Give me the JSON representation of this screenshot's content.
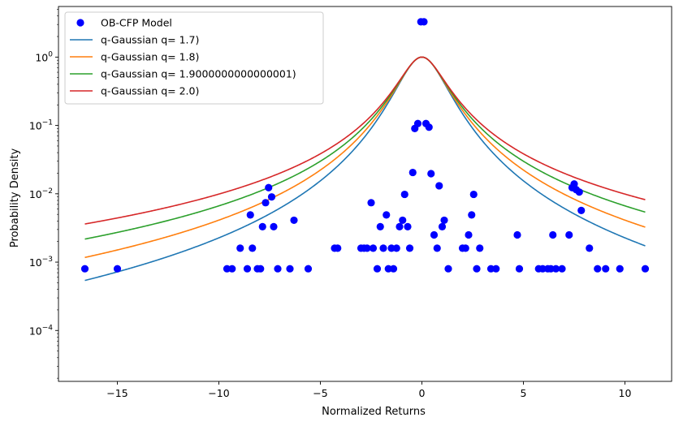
{
  "chart_data": {
    "type": "scatter",
    "title": "",
    "xlabel": "Normalized Returns",
    "ylabel": "Probability Density",
    "xlim": [
      -17.9,
      12.3
    ],
    "ylim": [
      1.8e-05,
      5.5
    ],
    "yscale": "log",
    "grid": false,
    "legend": "top-left",
    "x_ticks": [
      -15,
      -10,
      -5,
      0,
      5,
      10
    ],
    "x_tick_labels": [
      "−15",
      "−10",
      "−5",
      "0",
      "5",
      "10"
    ],
    "y_ticks": [
      0.0001,
      0.001,
      0.01,
      0.1,
      1
    ],
    "y_tick_exponents": [
      "−4",
      "−3",
      "−2",
      "−1",
      "0"
    ],
    "y_tick_base": "10",
    "scatter": {
      "name": "OB-CFP Model",
      "color": "#0000ff",
      "points": [
        [
          -16.6,
          0.0008
        ],
        [
          -15.0,
          0.0008
        ],
        [
          -9.6,
          0.0008
        ],
        [
          -9.35,
          0.0008
        ],
        [
          -8.95,
          0.0016
        ],
        [
          -8.6,
          0.0008
        ],
        [
          -8.45,
          0.0049
        ],
        [
          -8.35,
          0.0016
        ],
        [
          -8.1,
          0.0008
        ],
        [
          -7.95,
          0.0008
        ],
        [
          -7.85,
          0.0033
        ],
        [
          -7.7,
          0.0074
        ],
        [
          -7.55,
          0.0123
        ],
        [
          -7.4,
          0.009
        ],
        [
          -7.3,
          0.0033
        ],
        [
          -7.1,
          0.0008
        ],
        [
          -6.5,
          0.0008
        ],
        [
          -6.3,
          0.0041
        ],
        [
          -5.6,
          0.0008
        ],
        [
          -4.3,
          0.0016
        ],
        [
          -4.15,
          0.0016
        ],
        [
          -3.0,
          0.0016
        ],
        [
          -2.85,
          0.0016
        ],
        [
          -2.7,
          0.0016
        ],
        [
          -2.5,
          0.0074
        ],
        [
          -2.4,
          0.0016
        ],
        [
          -2.2,
          0.0008
        ],
        [
          -2.05,
          0.0033
        ],
        [
          -1.9,
          0.0016
        ],
        [
          -1.75,
          0.0049
        ],
        [
          -1.65,
          0.0008
        ],
        [
          -1.5,
          0.0016
        ],
        [
          -1.4,
          0.0008
        ],
        [
          -1.25,
          0.0016
        ],
        [
          -1.1,
          0.0033
        ],
        [
          -0.95,
          0.0041
        ],
        [
          -0.85,
          0.0098
        ],
        [
          -0.7,
          0.0033
        ],
        [
          -0.6,
          0.0016
        ],
        [
          -0.45,
          0.0205
        ],
        [
          -0.35,
          0.0902
        ],
        [
          -0.2,
          0.1066
        ],
        [
          -0.05,
          3.28
        ],
        [
          0.1,
          3.28
        ],
        [
          0.2,
          0.1066
        ],
        [
          0.35,
          0.0943
        ],
        [
          0.45,
          0.0197
        ],
        [
          0.6,
          0.0025
        ],
        [
          0.75,
          0.0016
        ],
        [
          0.85,
          0.0131
        ],
        [
          1.0,
          0.0033
        ],
        [
          1.1,
          0.0041
        ],
        [
          1.3,
          0.0008
        ],
        [
          2.0,
          0.0016
        ],
        [
          2.15,
          0.0016
        ],
        [
          2.3,
          0.0025
        ],
        [
          2.45,
          0.0049
        ],
        [
          2.55,
          0.0098
        ],
        [
          2.7,
          0.0008
        ],
        [
          2.85,
          0.0016
        ],
        [
          3.4,
          0.0008
        ],
        [
          3.65,
          0.0008
        ],
        [
          4.7,
          0.0025
        ],
        [
          4.8,
          0.0008
        ],
        [
          5.75,
          0.0008
        ],
        [
          5.95,
          0.0008
        ],
        [
          6.2,
          0.0008
        ],
        [
          6.35,
          0.0008
        ],
        [
          6.45,
          0.0025
        ],
        [
          6.6,
          0.0008
        ],
        [
          6.9,
          0.0008
        ],
        [
          7.25,
          0.0025
        ],
        [
          7.4,
          0.0123
        ],
        [
          7.5,
          0.0139
        ],
        [
          7.6,
          0.0115
        ],
        [
          7.75,
          0.0106
        ],
        [
          7.85,
          0.0057
        ],
        [
          8.25,
          0.0016
        ],
        [
          8.65,
          0.0008
        ],
        [
          9.05,
          0.0008
        ],
        [
          9.75,
          0.0008
        ],
        [
          11.0,
          0.0008
        ]
      ]
    },
    "series": [
      {
        "name": "q-Gaussian q= 1.7)",
        "q": 1.7,
        "color": "#1f77b4"
      },
      {
        "name": "q-Gaussian q= 1.8)",
        "q": 1.8,
        "color": "#ff7f0e"
      },
      {
        "name": "q-Gaussian q= 1.9000000000000001)",
        "q": 1.9000000000000001,
        "color": "#2ca02c"
      },
      {
        "name": "q-Gaussian q= 2.0)",
        "q": 2.0,
        "color": "#d62728"
      }
    ],
    "curve_x_range": [
      -16.6,
      11.0
    ]
  }
}
